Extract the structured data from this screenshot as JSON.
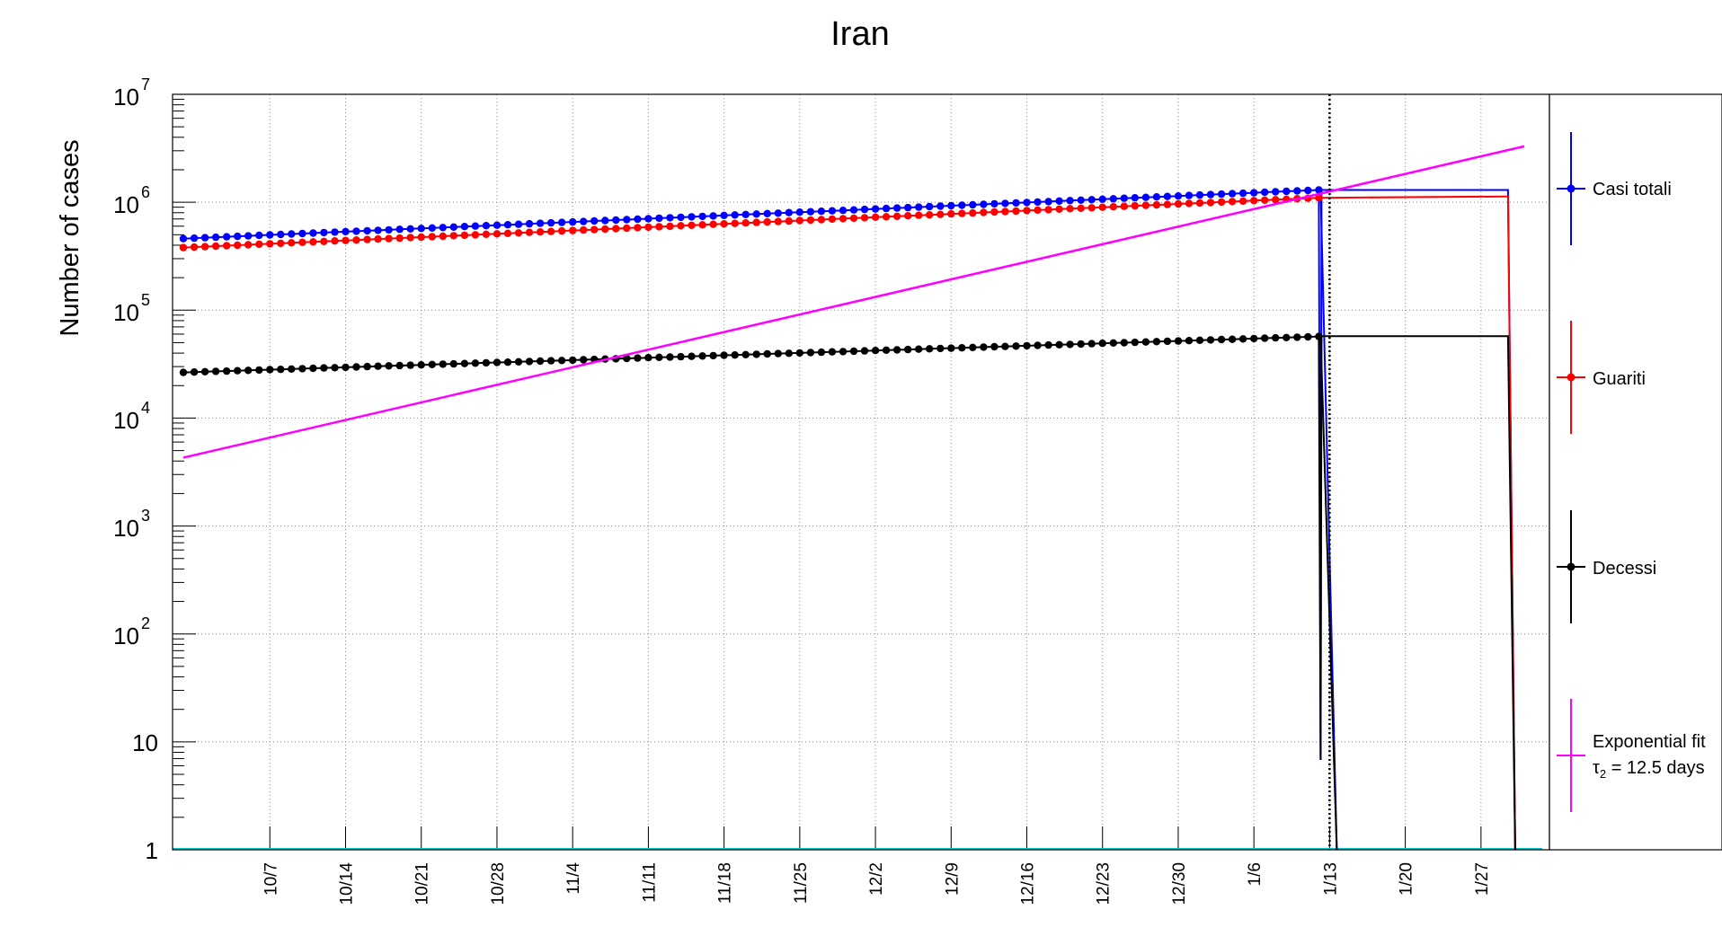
{
  "chart_data": {
    "type": "line",
    "title": "Iran",
    "ylabel": "Number of cases",
    "xlabel": "",
    "yscale": "log",
    "ylim": [
      1,
      10000000
    ],
    "xlim": [
      "2020-09-28",
      "2021-02-01"
    ],
    "grid": true,
    "legend_position": "right",
    "x_tick_labels": [
      "10/7",
      "10/14",
      "10/21",
      "10/28",
      "11/4",
      "11/11",
      "11/18",
      "11/25",
      "12/2",
      "12/9",
      "12/16",
      "12/23",
      "12/30",
      "1/6",
      "1/13",
      "1/20",
      "1/27"
    ],
    "x_tick_dates": [
      "2020-10-07",
      "2020-10-14",
      "2020-10-21",
      "2020-10-28",
      "2020-11-04",
      "2020-11-11",
      "2020-11-18",
      "2020-11-25",
      "2020-12-02",
      "2020-12-09",
      "2020-12-16",
      "2020-12-23",
      "2020-12-30",
      "2021-01-06",
      "2021-01-13",
      "2021-01-20",
      "2021-01-27"
    ],
    "y_tick_labels": {
      "t0": "1",
      "t1": "10",
      "t2": "10",
      "e2": "2",
      "t3": "10",
      "e3": "3",
      "t4": "10",
      "e4": "4",
      "t5": "10",
      "e5": "5",
      "t6": "10",
      "e6": "6",
      "t7": "10",
      "e7": "7"
    },
    "vertical_marker_date": "2021-01-13",
    "series": [
      {
        "name": "Casi totali",
        "color": "#0000ff",
        "start_date": "2020-09-29",
        "end_date": "2021-01-12",
        "start_value": 460000,
        "end_value": 1300000,
        "plateau_value": 1300000,
        "plateau_end_date": "2021-01-29",
        "drop_date": "2021-01-13"
      },
      {
        "name": "Guariti",
        "color": "#ff0000",
        "start_date": "2020-09-29",
        "end_date": "2021-01-12",
        "start_value": 380000,
        "end_value": 1100000,
        "plateau_value": 1130000,
        "plateau_end_date": "2021-01-29",
        "drop_date": "2021-01-30"
      },
      {
        "name": "Decessi",
        "color": "#000000",
        "start_date": "2020-09-29",
        "end_date": "2021-01-12",
        "start_value": 26500,
        "end_value": 57000,
        "plateau_value": 57500,
        "plateau_end_date": "2021-01-29",
        "drop_date": "2021-01-13"
      }
    ],
    "fit": {
      "name_line1": "Exponential fit",
      "name_line2_prefix": "τ",
      "name_line2_sub": "2",
      "name_line2_rest": " = 12.5 days",
      "color": "#ff00ff",
      "start_date": "2020-09-29",
      "start_value": 4300,
      "end_date": "2021-01-31",
      "end_value": 3300000
    }
  }
}
